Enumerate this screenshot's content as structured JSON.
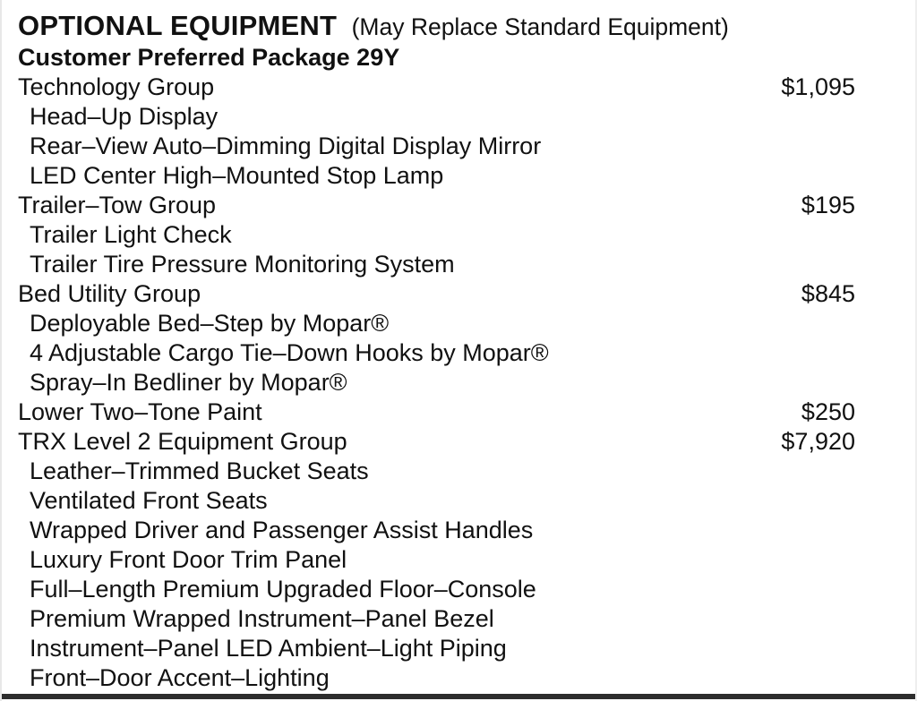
{
  "header": {
    "title": "OPTIONAL EQUIPMENT",
    "subtitle": "(May Replace Standard Equipment)"
  },
  "package_title": "Customer Preferred Package 29Y",
  "items": [
    {
      "label": "Technology Group",
      "price": "$1,095",
      "indent": false
    },
    {
      "label": "Head–Up Display",
      "price": "",
      "indent": true
    },
    {
      "label": "Rear–View Auto–Dimming Digital Display Mirror",
      "price": "",
      "indent": true
    },
    {
      "label": "LED Center High–Mounted Stop Lamp",
      "price": "",
      "indent": true
    },
    {
      "label": "Trailer–Tow Group",
      "price": "$195",
      "indent": false
    },
    {
      "label": "Trailer Light Check",
      "price": "",
      "indent": true
    },
    {
      "label": "Trailer Tire Pressure Monitoring System",
      "price": "",
      "indent": true
    },
    {
      "label": "Bed Utility Group",
      "price": "$845",
      "indent": false
    },
    {
      "label": "Deployable Bed–Step by Mopar®",
      "price": "",
      "indent": true
    },
    {
      "label": "4 Adjustable Cargo Tie–Down Hooks by Mopar®",
      "price": "",
      "indent": true
    },
    {
      "label": "Spray–In Bedliner by Mopar®",
      "price": "",
      "indent": true
    },
    {
      "label": "Lower Two–Tone Paint",
      "price": "$250",
      "indent": false
    },
    {
      "label": "TRX Level 2 Equipment Group",
      "price": "$7,920",
      "indent": false
    },
    {
      "label": "Leather–Trimmed Bucket Seats",
      "price": "",
      "indent": true
    },
    {
      "label": "Ventilated Front Seats",
      "price": "",
      "indent": true
    },
    {
      "label": "Wrapped Driver and Passenger Assist Handles",
      "price": "",
      "indent": true
    },
    {
      "label": "Luxury Front Door Trim Panel",
      "price": "",
      "indent": true
    },
    {
      "label": "Full–Length Premium Upgraded Floor–Console",
      "price": "",
      "indent": true
    },
    {
      "label": "Premium Wrapped Instrument–Panel Bezel",
      "price": "",
      "indent": true
    },
    {
      "label": "Instrument–Panel LED Ambient–Light Piping",
      "price": "",
      "indent": true
    },
    {
      "label": "Front–Door Accent–Lighting",
      "price": "",
      "indent": true
    }
  ],
  "colors": {
    "text": "#111111",
    "bottom_rule": "#2d2d2d"
  }
}
